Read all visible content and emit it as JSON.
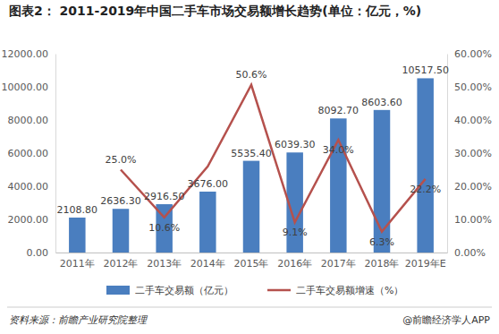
{
  "chart_data": {
    "type": "bar",
    "title": "图表2： 2011-2019年中国二手车市场交易额增长趋势(单位：亿元，%)",
    "categories": [
      "2011年",
      "2012年",
      "2013年",
      "2014年",
      "2015年",
      "2016年",
      "2017年",
      "2018年",
      "2019年E"
    ],
    "series": [
      {
        "name": "二手车交易额（亿元）",
        "type": "bar",
        "color": "#4a7ebf",
        "values": [
          2108.8,
          2636.3,
          2916.5,
          3676.0,
          5535.4,
          6039.3,
          8092.7,
          8603.6,
          10517.5
        ],
        "value_labels": [
          "2108.80",
          "2636.30",
          "2916.50",
          "3676.00",
          "5535.40",
          "6039.30",
          "8092.70",
          "8603.60",
          "10517.50"
        ]
      },
      {
        "name": "二手车交易额增速（%）",
        "type": "line",
        "axis": "y2",
        "color": "#b5514d",
        "values": [
          null,
          25.0,
          10.6,
          26.0,
          50.6,
          9.1,
          34.0,
          6.3,
          22.2
        ],
        "value_labels": [
          null,
          "25.0%",
          "10.6%",
          null,
          "50.6%",
          "9.1%",
          "34.0%",
          "6.3%",
          "22.2%"
        ]
      }
    ],
    "ylim": [
      0,
      12000
    ],
    "yticks": [
      {
        "value": 0,
        "label": "0.00"
      },
      {
        "value": 2000,
        "label": "2000.00"
      },
      {
        "value": 4000,
        "label": "4000.00"
      },
      {
        "value": 6000,
        "label": "6000.00"
      },
      {
        "value": 8000,
        "label": "8000.00"
      },
      {
        "value": 10000,
        "label": "10000.00"
      },
      {
        "value": 12000,
        "label": "12000.00"
      }
    ],
    "y2lim": [
      0,
      60
    ],
    "y2ticks": [
      {
        "value": 0,
        "label": "0.00%"
      },
      {
        "value": 10,
        "label": "10.00%"
      },
      {
        "value": 20,
        "label": "20.00%"
      },
      {
        "value": 30,
        "label": "30.00%"
      },
      {
        "value": 40,
        "label": "40.00%"
      },
      {
        "value": 50,
        "label": "50.00%"
      },
      {
        "value": 60,
        "label": "60.00%"
      }
    ],
    "grid": false,
    "data_labels": true,
    "legend": "bottom",
    "source": "资料来源：前瞻产业研究院整理",
    "credit": "@前瞻经济学人APP"
  }
}
